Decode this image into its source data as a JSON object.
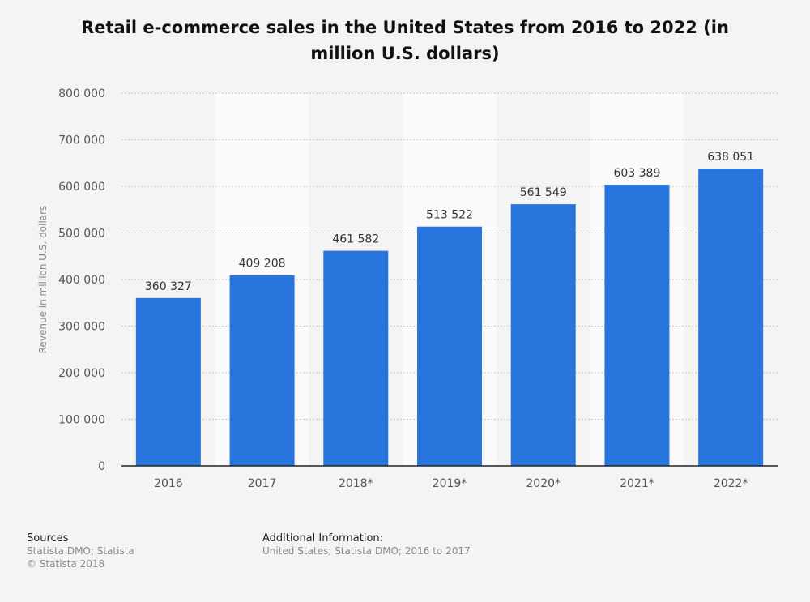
{
  "chart_data": {
    "type": "bar",
    "title": "Retail e-commerce sales in the United States from 2016 to 2022 (in million U.S. dollars)",
    "xlabel": "",
    "ylabel": "Revenue in million U.S. dollars",
    "categories": [
      "2016",
      "2017",
      "2018*",
      "2019*",
      "2020*",
      "2021*",
      "2022*"
    ],
    "values": [
      360327,
      409208,
      461582,
      513522,
      561549,
      603389,
      638051
    ],
    "value_labels": [
      "360 327",
      "409 208",
      "461 582",
      "513 522",
      "561 549",
      "603 389",
      "638 051"
    ],
    "ylim": [
      0,
      800000
    ],
    "yticks": [
      0,
      100000,
      200000,
      300000,
      400000,
      500000,
      600000,
      700000,
      800000
    ],
    "ytick_labels": [
      "0",
      "100 000",
      "200 000",
      "300 000",
      "400 000",
      "500 000",
      "600 000",
      "700 000",
      "800 000"
    ],
    "grid": true,
    "bar_color": "#2876dd"
  },
  "footer": {
    "sources_heading": "Sources",
    "sources_lines": [
      "Statista DMO; Statista",
      "© Statista 2018"
    ],
    "info_heading": "Additional Information:",
    "info_lines": [
      "United States; Statista DMO; 2016 to 2017"
    ]
  }
}
